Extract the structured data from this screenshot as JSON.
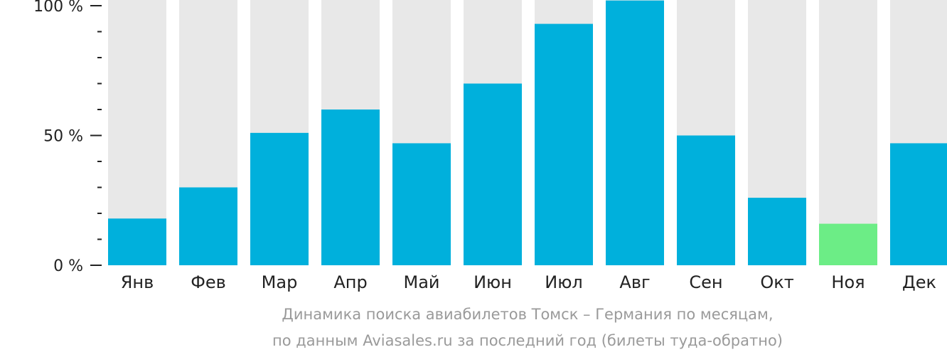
{
  "chart_data": {
    "type": "bar",
    "categories": [
      "Янв",
      "Фев",
      "Мар",
      "Апр",
      "Май",
      "Июн",
      "Июл",
      "Авг",
      "Сен",
      "Окт",
      "Ноя",
      "Дек"
    ],
    "values": [
      18,
      30,
      51,
      60,
      47,
      70,
      93,
      102,
      50,
      26,
      16,
      47
    ],
    "highlight_index": 10,
    "ylim": [
      0,
      100
    ],
    "y_ticks": [
      {
        "value": 100,
        "label": "100 %"
      },
      {
        "value": 50,
        "label": "50 %"
      },
      {
        "value": 0,
        "label": "0 %"
      }
    ],
    "minor_tick_step": 10,
    "colors": {
      "bar": "#00b0dc",
      "highlight": "#6ced86",
      "track": "#e8e8e8",
      "axis": "#222222"
    }
  },
  "caption": {
    "line1": "Динамика поиска авиабилетов Томск – Германия по месяцам,",
    "line2": "по данным Aviasales.ru за последний год (билеты туда-обратно)"
  }
}
